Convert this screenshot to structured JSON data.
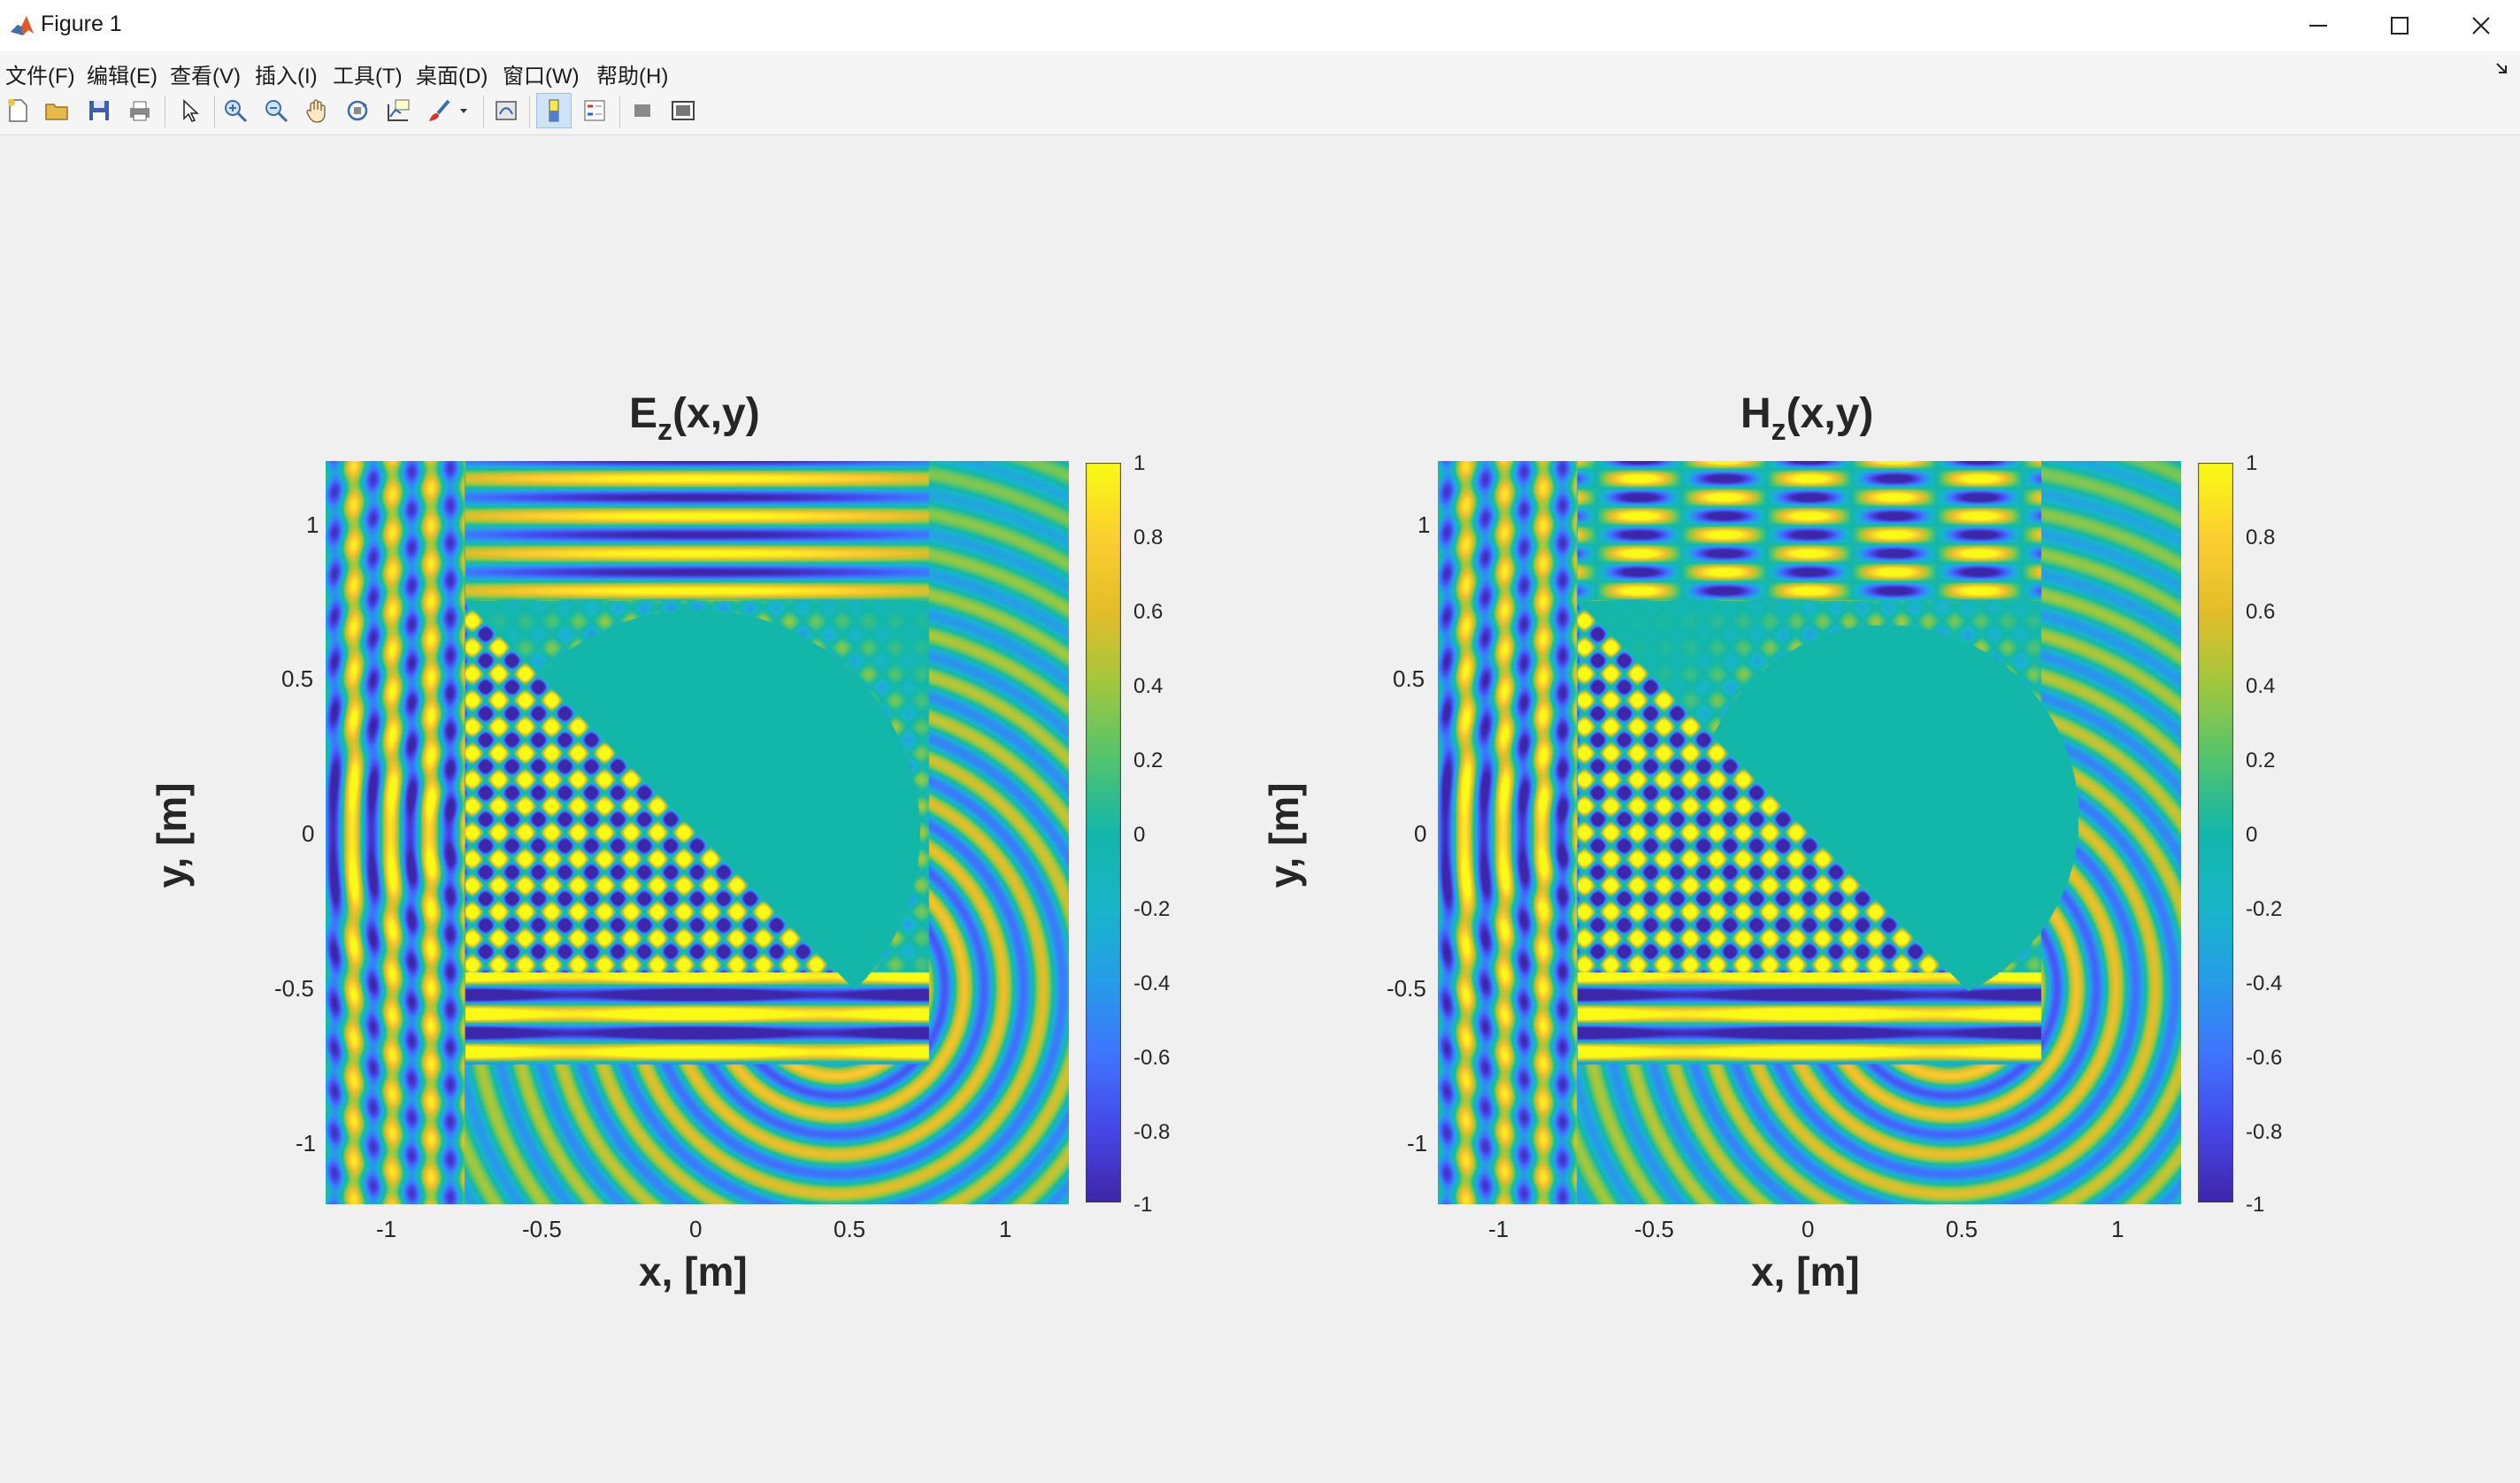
{
  "window": {
    "title": "Figure 1",
    "controls": [
      "minimize",
      "maximize",
      "close"
    ]
  },
  "menu": [
    "文件(F)",
    "编辑(E)",
    "查看(V)",
    "插入(I)",
    "工具(T)",
    "桌面(D)",
    "窗口(W)",
    "帮助(H)"
  ],
  "toolbar": {
    "buttons": [
      "new-figure-icon",
      "open-file-icon",
      "save-icon",
      "print-icon",
      "pointer-icon",
      "zoom-in-icon",
      "zoom-out-icon",
      "pan-icon",
      "rotate-3d-icon",
      "data-cursor-icon",
      "brush-icon",
      "brush-dropdown-icon",
      "link-plot-icon",
      "colorbar-icon",
      "legend-icon",
      "hide-plot-tools-icon",
      "show-plot-tools-icon"
    ]
  },
  "colors": {
    "colormap": "parula",
    "background": "#f0f0f0",
    "uniform_value": "#13b7a9"
  },
  "chart_data": [
    {
      "type": "heatmap",
      "title_main": "E",
      "title_sub": "z",
      "title_tail": "(x,y)",
      "xlabel": "x, [m]",
      "ylabel": "y, [m]",
      "xlim": [
        -1.2,
        1.2
      ],
      "ylim": [
        -1.2,
        1.2
      ],
      "xticks": [
        "-1",
        "-0.5",
        "0",
        "0.5",
        "1"
      ],
      "yticks": [
        "1",
        "0.5",
        "0",
        "-0.5",
        "-1"
      ],
      "colorbar_ticks": [
        "1",
        "0.8",
        "0.6",
        "0.4",
        "0.2",
        "0",
        "-0.2",
        "-0.4",
        "-0.6",
        "-0.8",
        "-1"
      ],
      "clim": [
        -1,
        1
      ],
      "colormap": "parula",
      "inner_square": [
        -0.75,
        0.75
      ],
      "scatterer": {
        "shape": "half-disk",
        "center": [
          0.0,
          0.0
        ],
        "radius": 0.72,
        "cut_line": "y = -x"
      }
    },
    {
      "type": "heatmap",
      "title_main": "H",
      "title_sub": "z",
      "title_tail": "(x,y)",
      "xlabel": "x, [m]",
      "ylabel": "y, [m]",
      "xlim": [
        -1.2,
        1.2
      ],
      "ylim": [
        -1.2,
        1.2
      ],
      "xticks": [
        "-1",
        "-0.5",
        "0",
        "0.5",
        "1"
      ],
      "yticks": [
        "1",
        "0.5",
        "0",
        "-0.5",
        "-1"
      ],
      "colorbar_ticks": [
        "1",
        "0.8",
        "0.6",
        "0.4",
        "0.2",
        "0",
        "-0.2",
        "-0.4",
        "-0.6",
        "-0.8",
        "-1"
      ],
      "clim": [
        -1,
        1
      ],
      "colormap": "parula",
      "inner_square": [
        -0.75,
        0.75
      ],
      "scatterer": {
        "shape": "half-disk",
        "center": [
          0.25,
          0.05
        ],
        "radius": 0.62,
        "cut_line": "y = -x"
      }
    }
  ]
}
